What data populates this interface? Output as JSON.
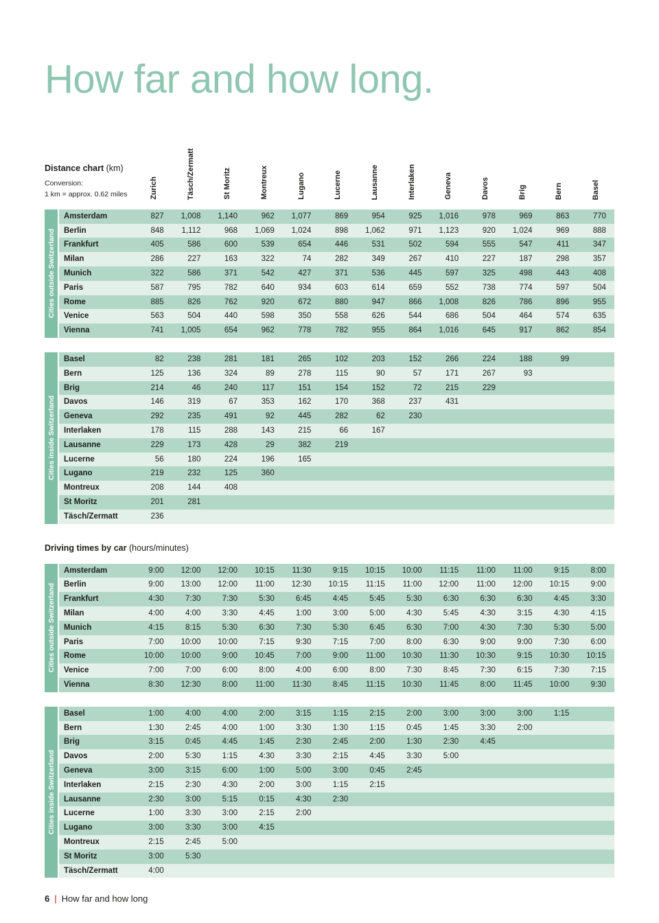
{
  "page": {
    "title": "How far and how long.",
    "footer": {
      "page_number": "6",
      "separator": "|",
      "text": "How far and how long"
    }
  },
  "columns": [
    "Zurich",
    "Täsch/Zermatt",
    "St Moritz",
    "Montreux",
    "Lugano",
    "Lucerne",
    "Lausanne",
    "Interlaken",
    "Geneva",
    "Davos",
    "Brig",
    "Bern",
    "Basel"
  ],
  "distance_chart": {
    "heading_bold": "Distance chart",
    "heading_rest": " (km)",
    "conversion_line1": "Conversion:",
    "conversion_line2": "1 km = approx. 0.62 miles",
    "outside_label": "Cities outside Switzerland",
    "inside_label": "Cities inside Switzerland",
    "outside_rows": [
      {
        "label": "Amsterdam",
        "values": [
          "827",
          "1,008",
          "1,140",
          "962",
          "1,077",
          "869",
          "954",
          "925",
          "1,016",
          "978",
          "969",
          "863",
          "770"
        ]
      },
      {
        "label": "Berlin",
        "values": [
          "848",
          "1,112",
          "968",
          "1,069",
          "1,024",
          "898",
          "1,062",
          "971",
          "1,123",
          "920",
          "1,024",
          "969",
          "888"
        ]
      },
      {
        "label": "Frankfurt",
        "values": [
          "405",
          "586",
          "600",
          "539",
          "654",
          "446",
          "531",
          "502",
          "594",
          "555",
          "547",
          "411",
          "347"
        ]
      },
      {
        "label": "Milan",
        "values": [
          "286",
          "227",
          "163",
          "322",
          "74",
          "282",
          "349",
          "267",
          "410",
          "227",
          "187",
          "298",
          "357"
        ]
      },
      {
        "label": "Munich",
        "values": [
          "322",
          "586",
          "371",
          "542",
          "427",
          "371",
          "536",
          "445",
          "597",
          "325",
          "498",
          "443",
          "408"
        ]
      },
      {
        "label": "Paris",
        "values": [
          "587",
          "795",
          "782",
          "640",
          "934",
          "603",
          "614",
          "659",
          "552",
          "738",
          "774",
          "597",
          "504"
        ]
      },
      {
        "label": "Rome",
        "values": [
          "885",
          "826",
          "762",
          "920",
          "672",
          "880",
          "947",
          "866",
          "1,008",
          "826",
          "786",
          "896",
          "955"
        ]
      },
      {
        "label": "Venice",
        "values": [
          "563",
          "504",
          "440",
          "598",
          "350",
          "558",
          "626",
          "544",
          "686",
          "504",
          "464",
          "574",
          "635"
        ]
      },
      {
        "label": "Vienna",
        "values": [
          "741",
          "1,005",
          "654",
          "962",
          "778",
          "782",
          "955",
          "864",
          "1,016",
          "645",
          "917",
          "862",
          "854"
        ]
      }
    ],
    "inside_rows": [
      {
        "label": "Basel",
        "values": [
          "82",
          "238",
          "281",
          "181",
          "265",
          "102",
          "203",
          "152",
          "266",
          "224",
          "188",
          "99"
        ]
      },
      {
        "label": "Bern",
        "values": [
          "125",
          "136",
          "324",
          "89",
          "278",
          "115",
          "90",
          "57",
          "171",
          "267",
          "93"
        ]
      },
      {
        "label": "Brig",
        "values": [
          "214",
          "46",
          "240",
          "117",
          "151",
          "154",
          "152",
          "72",
          "215",
          "229"
        ]
      },
      {
        "label": "Davos",
        "values": [
          "146",
          "319",
          "67",
          "353",
          "162",
          "170",
          "368",
          "237",
          "431"
        ]
      },
      {
        "label": "Geneva",
        "values": [
          "292",
          "235",
          "491",
          "92",
          "445",
          "282",
          "62",
          "230"
        ]
      },
      {
        "label": "Interlaken",
        "values": [
          "178",
          "115",
          "288",
          "143",
          "215",
          "66",
          "167"
        ]
      },
      {
        "label": "Lausanne",
        "values": [
          "229",
          "173",
          "428",
          "29",
          "382",
          "219"
        ]
      },
      {
        "label": "Lucerne",
        "values": [
          "56",
          "180",
          "224",
          "196",
          "165"
        ]
      },
      {
        "label": "Lugano",
        "values": [
          "219",
          "232",
          "125",
          "360"
        ]
      },
      {
        "label": "Montreux",
        "values": [
          "208",
          "144",
          "408"
        ]
      },
      {
        "label": "St Moritz",
        "values": [
          "201",
          "281"
        ]
      },
      {
        "label": "Täsch/Zermatt",
        "values": [
          "236"
        ]
      }
    ]
  },
  "driving_times": {
    "heading_bold": "Driving times by car",
    "heading_rest": " (hours/minutes)",
    "outside_label": "Cities outside Switzerland",
    "inside_label": "Cities inside Switzerland",
    "outside_rows": [
      {
        "label": "Amsterdam",
        "values": [
          "9:00",
          "12:00",
          "12:00",
          "10:15",
          "11:30",
          "9:15",
          "10:15",
          "10:00",
          "11:15",
          "11:00",
          "11:00",
          "9:15",
          "8:00"
        ]
      },
      {
        "label": "Berlin",
        "values": [
          "9:00",
          "13:00",
          "12:00",
          "11:00",
          "12:30",
          "10:15",
          "11:15",
          "11:00",
          "12:00",
          "11:00",
          "12:00",
          "10:15",
          "9:00"
        ]
      },
      {
        "label": "Frankfurt",
        "values": [
          "4:30",
          "7:30",
          "7:30",
          "5:30",
          "6:45",
          "4:45",
          "5:45",
          "5:30",
          "6:30",
          "6:30",
          "6:30",
          "4:45",
          "3:30"
        ]
      },
      {
        "label": "Milan",
        "values": [
          "4:00",
          "4:00",
          "3:30",
          "4:45",
          "1:00",
          "3:00",
          "5:00",
          "4:30",
          "5:45",
          "4:30",
          "3:15",
          "4:30",
          "4:15"
        ]
      },
      {
        "label": "Munich",
        "values": [
          "4:15",
          "8:15",
          "5:30",
          "6:30",
          "7:30",
          "5:30",
          "6:45",
          "6:30",
          "7:00",
          "4:30",
          "7:30",
          "5:30",
          "5:00"
        ]
      },
      {
        "label": "Paris",
        "values": [
          "7:00",
          "10:00",
          "10:00",
          "7:15",
          "9:30",
          "7:15",
          "7:00",
          "8:00",
          "6:30",
          "9:00",
          "9:00",
          "7:30",
          "6:00"
        ]
      },
      {
        "label": "Rome",
        "values": [
          "10:00",
          "10:00",
          "9:00",
          "10:45",
          "7:00",
          "9:00",
          "11:00",
          "10:30",
          "11:30",
          "10:30",
          "9:15",
          "10:30",
          "10:15"
        ]
      },
      {
        "label": "Venice",
        "values": [
          "7:00",
          "7:00",
          "6:00",
          "8:00",
          "4:00",
          "6:00",
          "8:00",
          "7:30",
          "8:45",
          "7:30",
          "6:15",
          "7:30",
          "7:15"
        ]
      },
      {
        "label": "Vienna",
        "values": [
          "8:30",
          "12:30",
          "8:00",
          "11:00",
          "11:30",
          "8:45",
          "11:15",
          "10:30",
          "11:45",
          "8:00",
          "11:45",
          "10:00",
          "9:30"
        ]
      }
    ],
    "inside_rows": [
      {
        "label": "Basel",
        "values": [
          "1:00",
          "4:00",
          "4:00",
          "2:00",
          "3:15",
          "1:15",
          "2:15",
          "2:00",
          "3:00",
          "3:00",
          "3:00",
          "1:15"
        ]
      },
      {
        "label": "Bern",
        "values": [
          "1:30",
          "2:45",
          "4:00",
          "1:00",
          "3:30",
          "1:30",
          "1:15",
          "0:45",
          "1:45",
          "3:30",
          "2:00"
        ]
      },
      {
        "label": "Brig",
        "values": [
          "3:15",
          "0:45",
          "4:45",
          "1:45",
          "2:30",
          "2:45",
          "2:00",
          "1:30",
          "2:30",
          "4:45"
        ]
      },
      {
        "label": "Davos",
        "values": [
          "2:00",
          "5:30",
          "1:15",
          "4:30",
          "3:30",
          "2:15",
          "4:45",
          "3:30",
          "5:00"
        ]
      },
      {
        "label": "Geneva",
        "values": [
          "3:00",
          "3:15",
          "6:00",
          "1:00",
          "5:00",
          "3:00",
          "0:45",
          "2:45"
        ]
      },
      {
        "label": "Interlaken",
        "values": [
          "2:15",
          "2:30",
          "4:30",
          "2:00",
          "3:00",
          "1:15",
          "2:15"
        ]
      },
      {
        "label": "Lausanne",
        "values": [
          "2:30",
          "3:00",
          "5:15",
          "0:15",
          "4:30",
          "2:30"
        ]
      },
      {
        "label": "Lucerne",
        "values": [
          "1:00",
          "3:30",
          "3:00",
          "2:15",
          "2:00"
        ]
      },
      {
        "label": "Lugano",
        "values": [
          "3:00",
          "3:30",
          "3:00",
          "4:15"
        ]
      },
      {
        "label": "Montreux",
        "values": [
          "2:15",
          "2:45",
          "5:00"
        ]
      },
      {
        "label": "St Moritz",
        "values": [
          "3:00",
          "5:30"
        ]
      },
      {
        "label": "Täsch/Zermatt",
        "values": [
          "4:00"
        ]
      }
    ]
  }
}
